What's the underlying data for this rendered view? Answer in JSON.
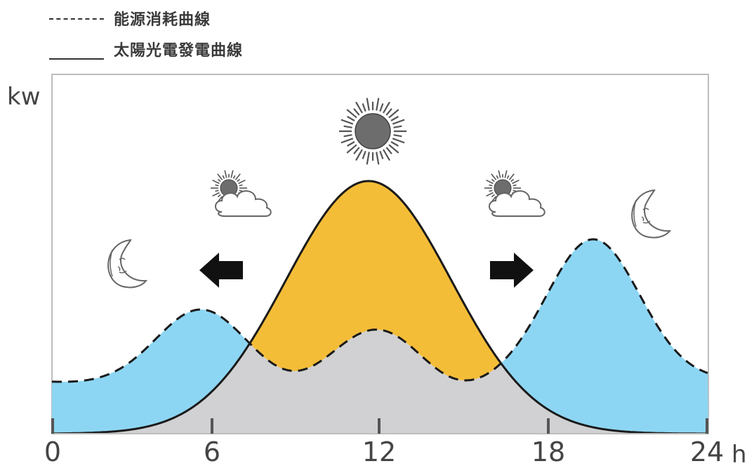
{
  "legend": {
    "consumption_label": "能源消耗曲線",
    "solar_label": "太陽光電發電曲線"
  },
  "axis": {
    "y_label": "kw",
    "x_unit": "h",
    "x_ticks": [
      "0",
      "6",
      "12",
      "18",
      "24"
    ]
  },
  "colors": {
    "solar_fill": "#F4BD38",
    "consumption_fill": "#8DD6F3",
    "overlap_fill": "#D1D1D3",
    "frame": "#BDBDBD",
    "curve": "#1a1a1a"
  },
  "icons": [
    "moon-icon",
    "left-arrow-icon",
    "sun-cloud-icon",
    "sun-icon",
    "sun-cloud-icon",
    "right-arrow-icon",
    "moon-icon"
  ]
}
